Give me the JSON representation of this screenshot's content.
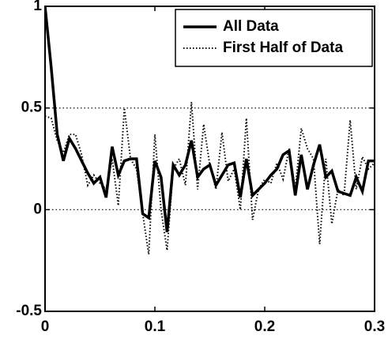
{
  "chart_data": {
    "type": "line",
    "x": [
      0,
      0.0056,
      0.0111,
      0.0167,
      0.0222,
      0.0278,
      0.0333,
      0.0389,
      0.0444,
      0.05,
      0.0556,
      0.0611,
      0.0667,
      0.0722,
      0.0778,
      0.0833,
      0.0889,
      0.0944,
      0.1,
      0.1056,
      0.1111,
      0.1167,
      0.1222,
      0.1278,
      0.1333,
      0.1389,
      0.1444,
      0.15,
      0.1556,
      0.1611,
      0.1667,
      0.1722,
      0.1778,
      0.1833,
      0.1889,
      0.1944,
      0.2,
      0.2056,
      0.2111,
      0.2167,
      0.2222,
      0.2278,
      0.2333,
      0.2389,
      0.2444,
      0.25,
      0.2556,
      0.2611,
      0.2667,
      0.2722,
      0.2778,
      0.2833,
      0.2889,
      0.2944,
      0.3
    ],
    "series": [
      {
        "name": "All Data",
        "color": "#000000",
        "style": "solid",
        "values": [
          1,
          0.7,
          0.37,
          0.24,
          0.35,
          0.3,
          0.24,
          0.18,
          0.13,
          0.16,
          0.06,
          0.31,
          0.17,
          0.24,
          0.25,
          0.25,
          -0.02,
          -0.04,
          0.24,
          0.16,
          -0.11,
          0.22,
          0.17,
          0.22,
          0.34,
          0.16,
          0.2,
          0.22,
          0.12,
          0.17,
          0.22,
          0.23,
          0.06,
          0.25,
          0.07,
          0.1,
          0.13,
          0.17,
          0.2,
          0.27,
          0.29,
          0.07,
          0.27,
          0.1,
          0.22,
          0.32,
          0.16,
          0.19,
          0.09,
          0.08,
          0.07,
          0.16,
          0.09,
          0.24,
          0.24
        ]
      },
      {
        "name": "First Half of Data",
        "color": "#000000",
        "style": "dotted",
        "values": [
          0.46,
          0.45,
          0.34,
          0.28,
          0.37,
          0.37,
          0.27,
          0.12,
          0.17,
          0.13,
          0.1,
          0.25,
          0.02,
          0.5,
          0.25,
          0.2,
          -0.02,
          -0.22,
          0.37,
          0.0,
          -0.2,
          0.2,
          0.25,
          0.12,
          0.53,
          0.1,
          0.42,
          0.22,
          0.1,
          0.38,
          0.14,
          0.2,
          0.0,
          0.45,
          -0.05,
          0.1,
          0.15,
          0.13,
          0.23,
          0.15,
          0.3,
          0.1,
          0.4,
          0.3,
          0.25,
          -0.17,
          0.25,
          -0.07,
          0.1,
          0.07,
          0.44,
          0.1,
          0.26,
          0.2,
          0.23
        ]
      }
    ],
    "xlim": [
      0,
      0.3
    ],
    "xticks": [
      0,
      0.1,
      0.2,
      0.3
    ],
    "ylim": [
      -0.5,
      1
    ],
    "yticks": [
      -0.5,
      0,
      0.5,
      1
    ],
    "grid": true,
    "legend": "upper right"
  }
}
